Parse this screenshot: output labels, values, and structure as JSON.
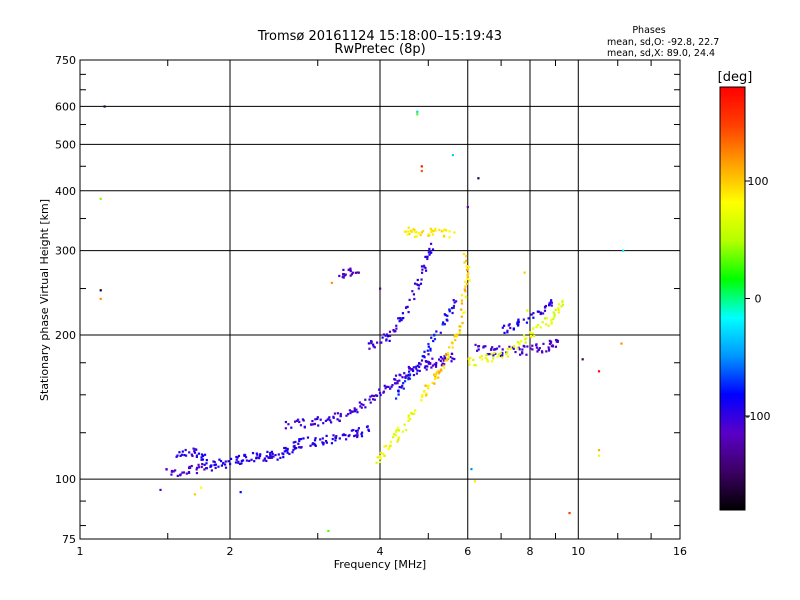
{
  "chart_data": {
    "type": "scatter",
    "title": "Tromsø 20161124 15:18:00–15:19:43",
    "subtitle": "RwPretec (8p)",
    "xlabel": "Frequency [MHz]",
    "ylabel": "Stationary phase Virtual Height [km]",
    "x_scale": "log",
    "y_scale": "log",
    "xlim": [
      1,
      16
    ],
    "ylim": [
      75,
      750
    ],
    "x_ticks": [
      1,
      2,
      4,
      6,
      8,
      10,
      16
    ],
    "x_tick_labels": [
      "1",
      "2",
      "4",
      "6",
      "8",
      "10",
      "16"
    ],
    "y_ticks": [
      75,
      100,
      200,
      300,
      400,
      500,
      600,
      750
    ],
    "y_tick_labels": [
      "75",
      "100",
      "200",
      "300",
      "400",
      "500",
      "600",
      "750"
    ],
    "grid": true,
    "colorbar": {
      "unit": "[deg]",
      "ticks": [
        100,
        0,
        -100
      ],
      "tick_labels": [
        "100",
        "0",
        "-100"
      ],
      "range": [
        -180,
        180
      ],
      "colors": [
        "#000000",
        "#3c0064",
        "#5a00c8",
        "#0000ff",
        "#0096ff",
        "#00ffff",
        "#00ff00",
        "#b4ff00",
        "#ffff00",
        "#ffa000",
        "#ff4000",
        "#ff0000"
      ]
    },
    "stats": {
      "heading": "Phases",
      "line_o": "mean, sd,O: -92.8, 22.7",
      "line_x": "mean, sd,X:  89.0, 24.4"
    },
    "traces": [
      {
        "name": "O-low",
        "phase": -95,
        "spread": 12,
        "points": [
          [
            1.55,
            112
          ],
          [
            1.65,
            114
          ],
          [
            1.75,
            113
          ],
          [
            1.8,
            106
          ],
          [
            1.9,
            108
          ],
          [
            2.0,
            108
          ],
          [
            2.1,
            110
          ],
          [
            2.2,
            111
          ],
          [
            2.3,
            111
          ],
          [
            2.4,
            112
          ],
          [
            2.5,
            112
          ],
          [
            2.6,
            115
          ],
          [
            2.7,
            118
          ],
          [
            2.8,
            120
          ],
          [
            3.0,
            120
          ],
          [
            3.2,
            121
          ],
          [
            3.4,
            123
          ],
          [
            3.6,
            125
          ],
          [
            3.8,
            128
          ]
        ]
      },
      {
        "name": "O-low-b",
        "phase": -110,
        "spread": 12,
        "points": [
          [
            1.5,
            103
          ],
          [
            1.6,
            104
          ],
          [
            1.7,
            105
          ],
          [
            1.8,
            106
          ]
        ]
      },
      {
        "name": "O-upper",
        "phase": -105,
        "spread": 12,
        "points": [
          [
            2.6,
            130
          ],
          [
            2.8,
            131
          ],
          [
            3.0,
            132
          ],
          [
            3.2,
            134
          ],
          [
            3.4,
            136
          ],
          [
            3.6,
            140
          ],
          [
            3.8,
            146
          ],
          [
            4.0,
            152
          ],
          [
            4.2,
            158
          ],
          [
            4.4,
            163
          ],
          [
            4.6,
            168
          ],
          [
            4.8,
            171
          ],
          [
            5.0,
            173
          ],
          [
            5.2,
            176
          ],
          [
            5.4,
            178
          ],
          [
            5.6,
            181
          ]
        ]
      },
      {
        "name": "O-cusp",
        "phase": -115,
        "spread": 10,
        "points": [
          [
            3.3,
            268
          ],
          [
            3.45,
            270
          ],
          [
            3.6,
            272
          ]
        ]
      },
      {
        "name": "O-layer",
        "phase": -100,
        "spread": 18,
        "points": [
          [
            3.8,
            190
          ],
          [
            4.0,
            195
          ],
          [
            4.2,
            200
          ],
          [
            4.4,
            215
          ],
          [
            4.6,
            235
          ],
          [
            4.8,
            260
          ],
          [
            5.0,
            290
          ],
          [
            5.1,
            305
          ]
        ]
      },
      {
        "name": "O-mid",
        "phase": -85,
        "spread": 20,
        "points": [
          [
            4.3,
            150
          ],
          [
            4.5,
            160
          ],
          [
            4.7,
            170
          ],
          [
            5.0,
            185
          ],
          [
            5.2,
            200
          ],
          [
            5.5,
            220
          ],
          [
            5.7,
            240
          ]
        ]
      },
      {
        "name": "O-high",
        "phase": -110,
        "spread": 12,
        "points": [
          [
            6.2,
            188
          ],
          [
            6.6,
            186
          ],
          [
            7.0,
            185
          ],
          [
            7.5,
            185
          ],
          [
            8.0,
            186
          ],
          [
            8.4,
            188
          ],
          [
            8.8,
            190
          ],
          [
            9.1,
            193
          ]
        ]
      },
      {
        "name": "O-high-upper",
        "phase": -95,
        "spread": 15,
        "points": [
          [
            7.0,
            205
          ],
          [
            7.5,
            210
          ],
          [
            8.0,
            215
          ],
          [
            8.5,
            225
          ],
          [
            8.8,
            235
          ]
        ]
      },
      {
        "name": "X-main",
        "phase": 95,
        "spread": 20,
        "points": [
          [
            4.8,
            148
          ],
          [
            5.0,
            155
          ],
          [
            5.2,
            165
          ],
          [
            5.4,
            175
          ],
          [
            5.6,
            190
          ],
          [
            5.8,
            210
          ],
          [
            5.9,
            240
          ],
          [
            6.0,
            265
          ],
          [
            5.9,
            295
          ]
        ]
      },
      {
        "name": "X-top",
        "phase": 90,
        "spread": 15,
        "points": [
          [
            4.5,
            330
          ],
          [
            4.7,
            328
          ],
          [
            5.0,
            326
          ],
          [
            5.3,
            326
          ],
          [
            5.6,
            328
          ]
        ]
      },
      {
        "name": "X-low",
        "phase": 75,
        "spread": 20,
        "points": [
          [
            3.9,
            108
          ],
          [
            4.1,
            114
          ],
          [
            4.3,
            122
          ],
          [
            4.5,
            130
          ],
          [
            4.7,
            140
          ]
        ]
      },
      {
        "name": "X-high",
        "phase": 70,
        "spread": 20,
        "points": [
          [
            6.0,
            175
          ],
          [
            6.5,
            178
          ],
          [
            7.0,
            182
          ],
          [
            7.5,
            188
          ],
          [
            8.0,
            200
          ],
          [
            8.5,
            210
          ],
          [
            9.0,
            220
          ],
          [
            9.3,
            235
          ]
        ]
      }
    ],
    "isolated_points": [
      {
        "x": 1.12,
        "y": 600,
        "phase": -160
      },
      {
        "x": 1.1,
        "y": 385,
        "phase": 40
      },
      {
        "x": 1.1,
        "y": 248,
        "phase": -170
      },
      {
        "x": 1.1,
        "y": 238,
        "phase": 120
      },
      {
        "x": 4.75,
        "y": 585,
        "phase": -30
      },
      {
        "x": 4.75,
        "y": 578,
        "phase": 30
      },
      {
        "x": 5.6,
        "y": 475,
        "phase": -30
      },
      {
        "x": 4.85,
        "y": 450,
        "phase": 170
      },
      {
        "x": 4.85,
        "y": 440,
        "phase": 140
      },
      {
        "x": 6.3,
        "y": 425,
        "phase": -160
      },
      {
        "x": 6.0,
        "y": 370,
        "phase": -120
      },
      {
        "x": 12.3,
        "y": 300,
        "phase": -20
      },
      {
        "x": 12.2,
        "y": 192,
        "phase": 120
      },
      {
        "x": 11.0,
        "y": 168,
        "phase": 175
      },
      {
        "x": 10.2,
        "y": 178,
        "phase": -150
      },
      {
        "x": 11.0,
        "y": 115,
        "phase": 110
      },
      {
        "x": 11.0,
        "y": 112,
        "phase": 70
      },
      {
        "x": 9.6,
        "y": 85,
        "phase": 150
      },
      {
        "x": 1.45,
        "y": 95,
        "phase": -120
      },
      {
        "x": 1.7,
        "y": 93,
        "phase": 100
      },
      {
        "x": 1.75,
        "y": 96,
        "phase": 80
      },
      {
        "x": 2.1,
        "y": 94,
        "phase": -80
      },
      {
        "x": 3.15,
        "y": 78,
        "phase": 30
      },
      {
        "x": 3.2,
        "y": 257,
        "phase": 120
      },
      {
        "x": 4.0,
        "y": 250,
        "phase": -130
      },
      {
        "x": 6.1,
        "y": 105,
        "phase": -50
      },
      {
        "x": 6.2,
        "y": 99,
        "phase": 90
      },
      {
        "x": 7.9,
        "y": 225,
        "phase": 60
      },
      {
        "x": 7.8,
        "y": 270,
        "phase": 100
      }
    ]
  }
}
